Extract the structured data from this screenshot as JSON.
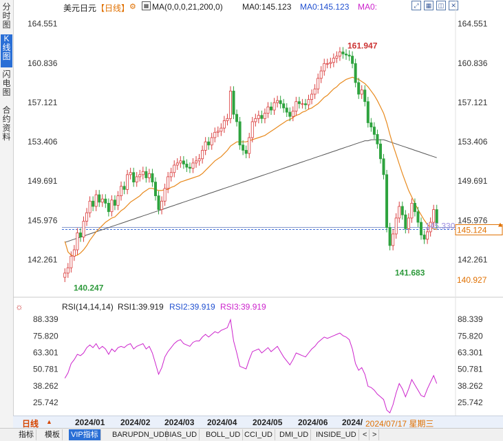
{
  "sidebar": {
    "tabs": [
      {
        "label": "分时图",
        "active": false
      },
      {
        "label": "K线图",
        "active": true
      },
      {
        "label": "闪电图",
        "active": false
      },
      {
        "label": "合约资料",
        "active": false
      }
    ]
  },
  "header": {
    "instrument": "美元日元",
    "period": "【日线】",
    "period_icon": "gear-icon",
    "ma_icon": "indicator-icon",
    "ma_params": "MA(0,0,0,21,200,0)",
    "ma0_a": "MA0:145.123",
    "ma0_b": "MA0:145.123",
    "ma0_c": "MA0:"
  },
  "window_icons": [
    "expand-icon",
    "grid-icon",
    "tile-icon",
    "close-icon"
  ],
  "price_axis": {
    "ticks_left": [
      "164.551",
      "160.836",
      "157.121",
      "153.406",
      "149.691",
      "145.976",
      "142.261"
    ],
    "ticks_right": [
      "164.551",
      "160.836",
      "157.121",
      "153.406",
      "149.691",
      "145.976",
      "142.261"
    ],
    "current_price": "145.124",
    "crosshair_price": "140.927",
    "watermark_price": "145.330"
  },
  "annotations": {
    "high": "161.947",
    "low_left": "140.247",
    "low_right": "141.683"
  },
  "rsi": {
    "icon": "sun-icon",
    "params": "RSI(14,14,14)",
    "rsi1": "RSI1:39.919",
    "rsi2": "RSI2:39.919",
    "rsi3": "RSI3:39.919",
    "ticks_left": [
      "88.339",
      "75.820",
      "63.301",
      "50.781",
      "38.262",
      "25.742"
    ],
    "ticks_right": [
      "88.339",
      "75.820",
      "63.301",
      "50.781",
      "38.262",
      "25.742"
    ]
  },
  "date_axis": {
    "period_button": "日线",
    "period_arrow": "▲",
    "labels": [
      "2024/01",
      "2024/02",
      "2024/03",
      "2024/04",
      "2024/05",
      "2024/06",
      "2024/"
    ],
    "cursor_date": "2024/07/17 星期三"
  },
  "bottom_tabs": [
    {
      "label": "指标",
      "active": false
    },
    {
      "label": "模板",
      "active": false
    },
    {
      "label": "VIP指标",
      "active": true
    },
    {
      "label": "BARUPDN_UD",
      "active": false
    },
    {
      "label": "BIAS_UD",
      "active": false
    },
    {
      "label": "BOLL_UD",
      "active": false
    },
    {
      "label": "CCI_UD",
      "active": false
    },
    {
      "label": "DMI_UD",
      "active": false
    },
    {
      "label": "INSIDE_UD",
      "active": false
    },
    {
      "label": "<",
      "active": false
    },
    {
      "label": ">",
      "active": false
    }
  ],
  "colors": {
    "up_candle": "#d93a3a",
    "down_candle": "#2ea33e",
    "ma21": "#e8891c",
    "ma200": "#555555",
    "rsi": "#cc22cc",
    "price_label": "#e07000"
  },
  "chart_data": {
    "type": "candlestick",
    "title": "美元日元",
    "x_range": [
      "2023/12",
      "2024/07/17"
    ],
    "price_ylim": [
      139.5,
      165.5
    ],
    "closes": [
      141.0,
      141.5,
      142.6,
      143.2,
      144.8,
      144.4,
      145.9,
      146.7,
      147.8,
      147.3,
      148.4,
      147.7,
      148.0,
      147.6,
      146.8,
      147.9,
      147.4,
      148.3,
      149.2,
      148.9,
      150.3,
      150.5,
      149.6,
      150.1,
      150.3,
      150.6,
      150.0,
      150.4,
      149.6,
      148.3,
      147.0,
      147.8,
      149.0,
      150.1,
      150.5,
      151.2,
      151.4,
      151.6,
      151.3,
      151.0,
      150.9,
      151.4,
      151.6,
      151.8,
      152.6,
      153.4,
      153.1,
      153.8,
      154.3,
      154.4,
      154.7,
      155.4,
      155.6,
      158.2,
      156.0,
      155.3,
      153.1,
      152.6,
      152.3,
      153.8,
      155.3,
      155.6,
      155.9,
      155.6,
      156.1,
      156.7,
      156.4,
      157.1,
      157.3,
      157.0,
      156.6,
      156.2,
      155.8,
      156.3,
      157.2,
      157.0,
      157.0,
      156.9,
      157.4,
      157.9,
      158.4,
      159.4,
      160.1,
      160.8,
      160.8,
      160.9,
      161.3,
      161.5,
      161.9,
      161.7,
      161.6,
      161.5,
      160.8,
      159.0,
      157.9,
      158.3,
      157.2,
      155.2,
      154.8,
      154.1,
      153.2,
      151.8,
      150.3,
      145.3,
      143.6,
      144.7,
      146.2,
      147.3,
      146.5,
      145.2,
      146.2,
      147.6,
      146.8,
      145.8,
      144.6,
      144.2,
      144.9,
      145.8,
      147.0,
      145.7
    ],
    "opens": [
      140.6,
      141.0,
      141.5,
      142.6,
      143.2,
      144.8,
      144.4,
      145.9,
      146.7,
      147.8,
      147.3,
      148.4,
      147.7,
      148.0,
      147.6,
      146.8,
      147.9,
      147.4,
      148.3,
      149.2,
      148.9,
      150.3,
      150.5,
      149.6,
      150.1,
      150.3,
      150.6,
      150.0,
      150.4,
      149.6,
      148.3,
      147.0,
      147.8,
      149.0,
      150.1,
      150.5,
      151.2,
      151.4,
      151.6,
      151.3,
      151.0,
      150.9,
      151.4,
      151.6,
      151.8,
      152.6,
      153.4,
      153.1,
      153.8,
      154.3,
      154.4,
      154.7,
      155.4,
      155.6,
      158.2,
      156.0,
      155.3,
      153.1,
      152.6,
      152.3,
      153.8,
      155.3,
      155.6,
      155.9,
      155.6,
      156.1,
      156.7,
      156.4,
      157.1,
      157.3,
      157.0,
      156.6,
      156.2,
      155.8,
      156.3,
      157.2,
      157.0,
      157.0,
      156.9,
      157.4,
      157.9,
      158.4,
      159.4,
      160.1,
      160.8,
      160.8,
      160.9,
      161.3,
      161.5,
      161.9,
      161.7,
      161.6,
      161.5,
      160.8,
      159.0,
      157.9,
      158.3,
      157.2,
      155.2,
      154.8,
      154.1,
      153.2,
      151.8,
      150.3,
      145.3,
      143.6,
      144.7,
      146.2,
      147.3,
      146.5,
      145.2,
      146.2,
      147.6,
      146.8,
      145.8,
      144.6,
      144.2,
      144.9,
      145.8,
      147.0
    ],
    "ma21": [
      144.0,
      143.0,
      142.7,
      142.6,
      142.7,
      142.9,
      143.2,
      143.6,
      144.1,
      144.5,
      144.9,
      145.2,
      145.5,
      145.8,
      146.0,
      146.2,
      146.3,
      146.6,
      146.9,
      147.1,
      147.4,
      147.7,
      147.9,
      148.1,
      148.3,
      148.6,
      148.8,
      149.0,
      149.0,
      148.9,
      148.8,
      148.8,
      148.9,
      148.9,
      149.1,
      149.2,
      149.4,
      149.6,
      149.7,
      149.8,
      149.9,
      150.0,
      150.1,
      150.2,
      150.4,
      150.7,
      151.0,
      151.3,
      151.6,
      151.8,
      152.0,
      152.3,
      152.6,
      153.0,
      153.2,
      153.4,
      153.4,
      153.4,
      153.4,
      153.5,
      153.6,
      153.7,
      153.8,
      153.9,
      154.0,
      154.2,
      154.4,
      154.6,
      154.8,
      155.0,
      155.2,
      155.4,
      155.5,
      155.7,
      155.9,
      156.0,
      156.2,
      156.3,
      156.5,
      156.6,
      156.8,
      157.0,
      157.3,
      157.6,
      157.8,
      158.1,
      158.4,
      158.6,
      158.9,
      159.1,
      159.3,
      159.4,
      159.5,
      159.4,
      159.3,
      159.1,
      158.9,
      158.6,
      158.2,
      157.8,
      157.3,
      156.7,
      156.1,
      155.2,
      154.1,
      153.1,
      152.2,
      151.3,
      150.4,
      149.6,
      148.8,
      148.2,
      147.6,
      147.0,
      146.5,
      146.0,
      145.6,
      145.3,
      145.2,
      145.1
    ],
    "ma200": [
      143.9,
      144.0,
      144.1,
      144.2,
      144.3,
      144.4,
      144.5,
      144.6,
      144.7,
      144.8,
      144.9,
      145.0,
      145.1,
      145.2,
      145.3,
      145.4,
      145.5,
      145.6,
      145.7,
      145.8,
      145.9,
      146.0,
      146.1,
      146.2,
      146.3,
      146.4,
      146.5,
      146.6,
      146.7,
      146.8,
      146.9,
      147.0,
      147.1,
      147.2,
      147.3,
      147.4,
      147.5,
      147.6,
      147.7,
      147.8,
      147.9,
      148.0,
      148.1,
      148.2,
      148.3,
      148.4,
      148.5,
      148.6,
      148.7,
      148.8,
      148.9,
      149.0,
      149.1,
      149.2,
      149.3,
      149.4,
      149.5,
      149.6,
      149.7,
      149.8,
      149.9,
      150.0,
      150.1,
      150.2,
      150.3,
      150.4,
      150.5,
      150.6,
      150.7,
      150.8,
      150.9,
      151.0,
      151.1,
      151.2,
      151.3,
      151.4,
      151.5,
      151.6,
      151.7,
      151.8,
      151.9,
      152.0,
      152.1,
      152.2,
      152.3,
      152.4,
      152.5,
      152.6,
      152.7,
      152.8,
      152.9,
      153.0,
      153.1,
      153.2,
      153.3,
      153.4,
      153.5,
      153.5,
      153.6,
      153.6,
      153.6,
      153.6,
      153.6,
      153.5,
      153.4,
      153.3,
      153.2,
      153.1,
      153.0,
      152.9,
      152.8,
      152.7,
      152.6,
      152.5,
      152.4,
      152.3,
      152.2,
      152.1,
      152.0,
      151.9
    ],
    "rsi": [
      44,
      48,
      55,
      58,
      62,
      61,
      63,
      67,
      69,
      67,
      70,
      66,
      68,
      66,
      62,
      66,
      64,
      67,
      68,
      67,
      69,
      70,
      66,
      68,
      69,
      70,
      66,
      68,
      63,
      55,
      47,
      52,
      60,
      64,
      67,
      70,
      72,
      73,
      70,
      69,
      68,
      71,
      72,
      72,
      75,
      77,
      75,
      77,
      79,
      78,
      80,
      81,
      82,
      88,
      72,
      63,
      53,
      52,
      51,
      58,
      64,
      65,
      66,
      63,
      65,
      67,
      64,
      66,
      68,
      64,
      60,
      57,
      54,
      58,
      63,
      62,
      61,
      60,
      63,
      66,
      68,
      71,
      73,
      75,
      74,
      75,
      76,
      77,
      78,
      76,
      75,
      73,
      66,
      55,
      50,
      52,
      47,
      38,
      37,
      35,
      32,
      30,
      28,
      20,
      18,
      24,
      33,
      40,
      36,
      30,
      36,
      43,
      39,
      35,
      31,
      30,
      36,
      41,
      46,
      40
    ],
    "rsi_ylim": [
      18,
      92
    ]
  }
}
